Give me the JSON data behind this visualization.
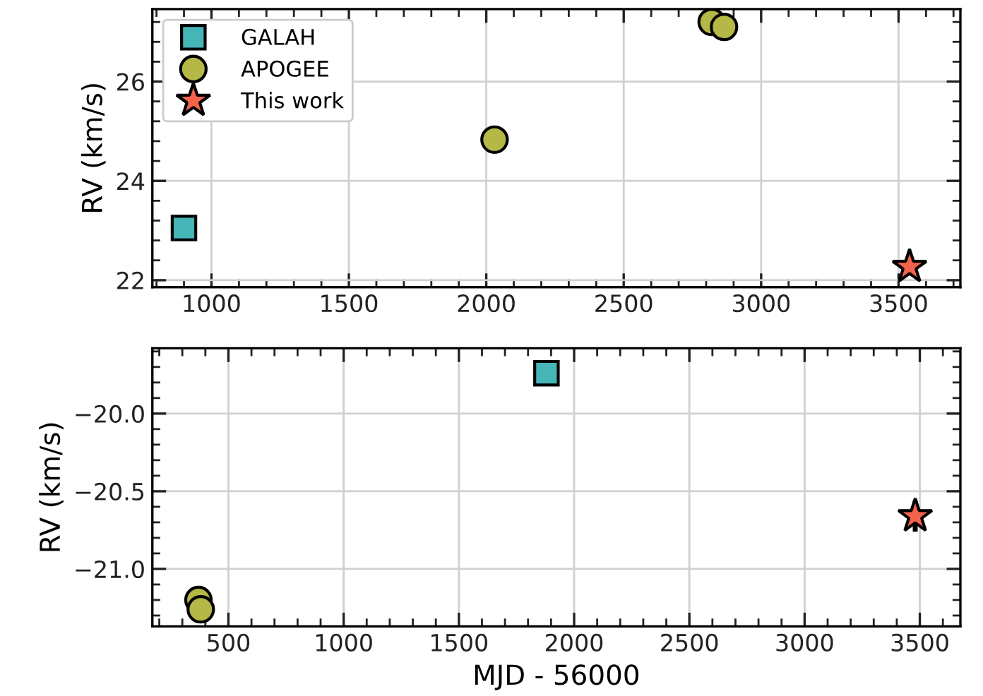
{
  "chart_data": [
    {
      "type": "scatter",
      "ylabel": "RV (km/s)",
      "xlim": [
        785,
        3725
      ],
      "xticks": [
        1000,
        1500,
        2000,
        2500,
        3000,
        3500
      ],
      "ylim": [
        21.86,
        27.46
      ],
      "yticks": [
        22,
        24,
        26
      ],
      "grid": true,
      "legend": "top left",
      "series": [
        {
          "name": "GALAH",
          "color": "#45b5b8",
          "marker": "square",
          "x": [
            900
          ],
          "values": [
            23.05
          ]
        },
        {
          "name": "APOGEE",
          "color": "#b5b846",
          "marker": "circle",
          "x": [
            2030,
            2820,
            2865
          ],
          "values": [
            24.83,
            27.2,
            27.1
          ]
        },
        {
          "name": "This work",
          "color": "#f4644a",
          "marker": "star",
          "x": [
            3540
          ],
          "values": [
            22.27
          ]
        }
      ]
    },
    {
      "type": "scatter",
      "xlabel": "MJD - 56000",
      "ylabel": "RV (km/s)",
      "xlim": [
        170,
        3676
      ],
      "xticks": [
        500,
        1000,
        1500,
        2000,
        2500,
        3000,
        3500
      ],
      "ylim": [
        -21.37,
        -19.58
      ],
      "yticks": [
        {
          "value": -21.0,
          "label": "−21.0"
        },
        {
          "value": -20.5,
          "label": "−20.5"
        },
        {
          "value": -20.0,
          "label": "−20.0"
        }
      ],
      "grid": true,
      "series": [
        {
          "color": "#45b5b8",
          "marker": "square",
          "x": [
            1880
          ],
          "values": [
            -19.74
          ]
        },
        {
          "color": "#b5b846",
          "marker": "circle",
          "x": [
            370,
            380
          ],
          "values": [
            -21.2,
            -21.26
          ]
        },
        {
          "color": "#f4644a",
          "marker": "star",
          "x": [
            3480
          ],
          "values": [
            -20.66
          ],
          "errors": [
            0.1
          ]
        }
      ]
    }
  ]
}
